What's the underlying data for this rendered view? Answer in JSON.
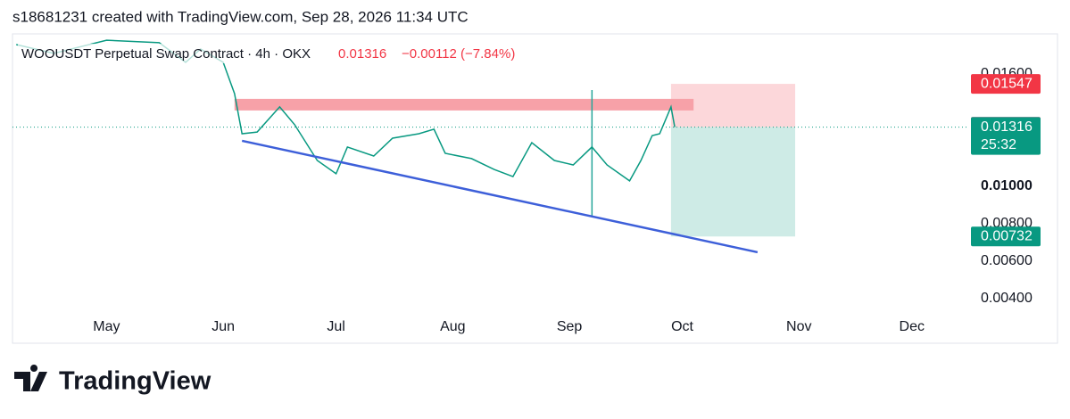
{
  "chart_data": {
    "type": "line",
    "header": "s18681231 created with TradingView.com, Sep 28, 2026 11:34 UTC",
    "symbol": "WOOUSDT Perpetual Swap Contract · 4h · OKX",
    "change": "−0.00112 (−7.84%)",
    "last_price": 0.01316,
    "countdown": "25:32",
    "marker_price": 0.01318,
    "brand": "TradingView",
    "color": "#089981",
    "x": [
      97,
      107,
      121,
      135,
      142,
      146,
      152,
      155,
      157,
      161,
      167,
      171,
      177,
      182,
      185,
      192,
      197,
      204,
      208,
      211,
      218,
      224,
      229,
      234,
      240,
      245,
      250,
      254,
      260,
      263,
      266,
      268,
      271,
      272
    ],
    "values": [
      0.01757,
      0.0171,
      0.0178,
      0.01767,
      0.01662,
      0.01733,
      0.01662,
      0.01495,
      0.01281,
      0.0129,
      0.01424,
      0.01329,
      0.01138,
      0.01067,
      0.0121,
      0.01162,
      0.01257,
      0.01281,
      0.01305,
      0.01176,
      0.01148,
      0.0109,
      0.01052,
      0.01233,
      0.01138,
      0.01114,
      0.0121,
      0.01114,
      0.01029,
      0.01138,
      0.01271,
      0.01281,
      0.01424,
      0.01316
    ],
    "xlim": [
      96,
      350
    ],
    "xticks": [
      {
        "value": 121,
        "label": "May"
      },
      {
        "value": 152,
        "label": "Jun"
      },
      {
        "value": 182,
        "label": "Jul"
      },
      {
        "value": 213,
        "label": "Aug"
      },
      {
        "value": 244,
        "label": "Sep"
      },
      {
        "value": 274,
        "label": "Oct"
      },
      {
        "value": 305,
        "label": "Nov"
      },
      {
        "value": 335,
        "label": "Dec"
      }
    ],
    "ylim": [
      0.00162,
      0.01814
    ],
    "yticks": [
      {
        "value": 0.016,
        "label": "0.01600"
      },
      {
        "value": 0.01,
        "label": "0.01000"
      },
      {
        "value": 0.008,
        "label": "0.00800"
      },
      {
        "value": 0.006,
        "label": "0.00600"
      },
      {
        "value": 0.004,
        "label": "0.00400"
      }
    ],
    "resistance": {
      "x": [
        155,
        277
      ],
      "low": 0.01405,
      "high": 0.01467,
      "color": "#f7a1a8"
    },
    "trendline": {
      "x": [
        157,
        294
      ],
      "y": [
        0.01243,
        0.00648
      ],
      "color": "#3d5fd9"
    },
    "spike": {
      "x": 250,
      "high": 0.01514,
      "low": 0.00843,
      "color": "#26a69a"
    },
    "position": {
      "x": [
        271,
        304
      ],
      "entry": 0.01316,
      "stop": 0.01547,
      "target": 0.00732,
      "stop_color": "#f23645",
      "target_color": "#089981"
    }
  }
}
